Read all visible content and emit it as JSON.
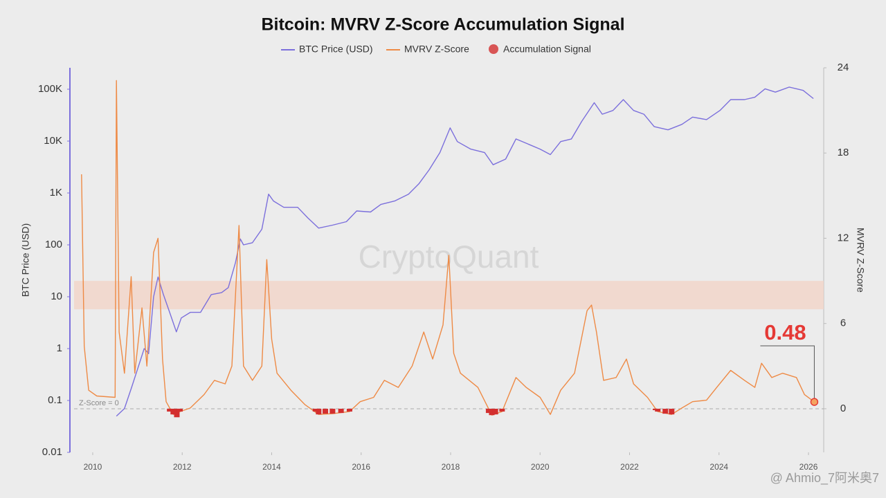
{
  "chart_data": {
    "type": "dual_axis_line",
    "title": "Bitcoin: MVRV Z-Score Accumulation Signal",
    "y_label": "BTC Price (USD)",
    "y2_label": "MVRV Z-Score",
    "watermark": "CryptoQuant",
    "footer_watermark": "@ Ahmio_7阿米奥7",
    "xlim": [
      2009.49,
      2026.34
    ],
    "xticks": [
      2010,
      2012,
      2014,
      2016,
      2018,
      2020,
      2022,
      2024,
      2026
    ],
    "ylog": true,
    "ylim": [
      0.01,
      259000
    ],
    "yticks": [
      0.01,
      0.1,
      1,
      10,
      100,
      {
        "value": 1000,
        "label": "1K"
      },
      {
        "value": 10000,
        "label": "10K"
      },
      {
        "value": 100000,
        "label": "100K"
      }
    ],
    "y2lim": [
      -3.07,
      24
    ],
    "y2ticks": [
      0,
      6,
      12,
      18,
      24
    ],
    "highlight_band": {
      "y2": [
        7,
        9
      ],
      "color": "#f2d5c8"
    },
    "zero_line": {
      "value": 0,
      "label": "Z-Score = 0"
    },
    "annotation": {
      "x": 2026.13,
      "value": 0.48,
      "color": "#e53935"
    },
    "series": [
      {
        "name": "BTC Price (USD)",
        "color": "#7b6fdc",
        "kind": "line",
        "x": [
          2010.53,
          2010.71,
          2010.87,
          2011.02,
          2011.15,
          2011.25,
          2011.36,
          2011.46,
          2011.58,
          2011.72,
          2011.87,
          2011.98,
          2012.18,
          2012.41,
          2012.65,
          2012.88,
          2013.03,
          2013.19,
          2013.3,
          2013.37,
          2013.57,
          2013.78,
          2013.93,
          2014.04,
          2014.27,
          2014.58,
          2014.81,
          2015.05,
          2015.36,
          2015.67,
          2015.9,
          2016.21,
          2016.44,
          2016.75,
          2017.06,
          2017.29,
          2017.52,
          2017.76,
          2017.99,
          2018.15,
          2018.45,
          2018.76,
          2018.95,
          2019.23,
          2019.46,
          2019.77,
          2020.0,
          2020.23,
          2020.46,
          2020.7,
          2020.93,
          2021.21,
          2021.39,
          2021.63,
          2021.86,
          2022.09,
          2022.32,
          2022.55,
          2022.86,
          2023.17,
          2023.41,
          2023.72,
          2024.02,
          2024.26,
          2024.57,
          2024.8,
          2025.03,
          2025.26,
          2025.57,
          2025.88,
          2026.11
        ],
        "values": [
          0.05,
          0.07,
          0.18,
          0.45,
          1,
          0.8,
          10,
          24,
          11,
          5,
          2.1,
          3.9,
          5,
          5,
          11,
          12,
          15,
          45,
          130,
          100,
          110,
          200,
          950,
          700,
          530,
          530,
          330,
          210,
          240,
          280,
          450,
          430,
          600,
          700,
          950,
          1500,
          2800,
          6000,
          18000,
          9800,
          7000,
          6000,
          3500,
          4500,
          11000,
          8500,
          7000,
          5500,
          9800,
          11000,
          24000,
          55000,
          33000,
          39000,
          63000,
          39000,
          33000,
          19000,
          16500,
          21000,
          29000,
          26000,
          39000,
          63000,
          63000,
          70000,
          102000,
          88000,
          110000,
          95000,
          66000
        ]
      },
      {
        "name": "MVRV Z-Score",
        "color": "#ee8a45",
        "kind": "line",
        "axis": "y2",
        "x": [
          2009.75,
          2009.81,
          2009.91,
          2010.09,
          2010.5,
          2010.53,
          2010.59,
          2010.71,
          2010.86,
          2010.94,
          2011.1,
          2011.21,
          2011.36,
          2011.46,
          2011.56,
          2011.64,
          2011.8,
          2011.95,
          2012.18,
          2012.49,
          2012.72,
          2012.96,
          2013.11,
          2013.27,
          2013.37,
          2013.57,
          2013.78,
          2013.89,
          2014.0,
          2014.12,
          2014.43,
          2014.74,
          2015.05,
          2015.36,
          2015.74,
          2015.98,
          2016.28,
          2016.52,
          2016.83,
          2017.14,
          2017.4,
          2017.6,
          2017.83,
          2017.96,
          2018.07,
          2018.22,
          2018.61,
          2018.92,
          2019.15,
          2019.46,
          2019.69,
          2020.0,
          2020.23,
          2020.46,
          2020.77,
          2021.05,
          2021.15,
          2021.26,
          2021.42,
          2021.7,
          2021.93,
          2022.09,
          2022.4,
          2022.63,
          2022.94,
          2023.17,
          2023.41,
          2023.72,
          2023.95,
          2024.26,
          2024.57,
          2024.8,
          2024.95,
          2025.18,
          2025.42,
          2025.73,
          2025.91,
          2026.13
        ],
        "values": [
          16.5,
          4.4,
          1.3,
          0.9,
          0.8,
          23.1,
          5.4,
          2.5,
          9.3,
          2.5,
          7.1,
          3.0,
          11.0,
          12.0,
          3.5,
          0.5,
          -0.4,
          -0.2,
          0.05,
          1.0,
          2.0,
          1.75,
          3.0,
          12.9,
          3.0,
          2.0,
          3.0,
          10.5,
          4.9,
          2.5,
          1.3,
          0.3,
          -0.4,
          -0.35,
          -0.2,
          0.5,
          0.8,
          2.0,
          1.5,
          3.0,
          5.4,
          3.5,
          5.9,
          10.8,
          3.9,
          2.5,
          1.5,
          -0.45,
          -0.2,
          2.2,
          1.5,
          0.8,
          -0.4,
          1.3,
          2.5,
          6.9,
          7.3,
          5.4,
          2.0,
          2.2,
          3.5,
          1.75,
          0.8,
          -0.2,
          -0.4,
          0.05,
          0.5,
          0.6,
          1.5,
          2.7,
          2.0,
          1.5,
          3.2,
          2.2,
          2.5,
          2.2,
          1.0,
          0.48
        ]
      },
      {
        "name": "Accumulation Signal",
        "color": "#d32f2f",
        "kind": "signal",
        "axis": "y2",
        "x": [
          2011.72,
          2011.8,
          2011.88,
          2011.95,
          2014.98,
          2015.05,
          2015.2,
          2015.36,
          2015.55,
          2015.74,
          2018.85,
          2018.92,
          2019.0,
          2019.15,
          2022.58,
          2022.63,
          2022.8,
          2022.94
        ],
        "values": [
          -0.2,
          -0.4,
          -0.6,
          -0.2,
          -0.2,
          -0.4,
          -0.35,
          -0.35,
          -0.3,
          -0.2,
          -0.3,
          -0.45,
          -0.4,
          -0.2,
          -0.1,
          -0.2,
          -0.35,
          -0.4
        ]
      }
    ]
  }
}
